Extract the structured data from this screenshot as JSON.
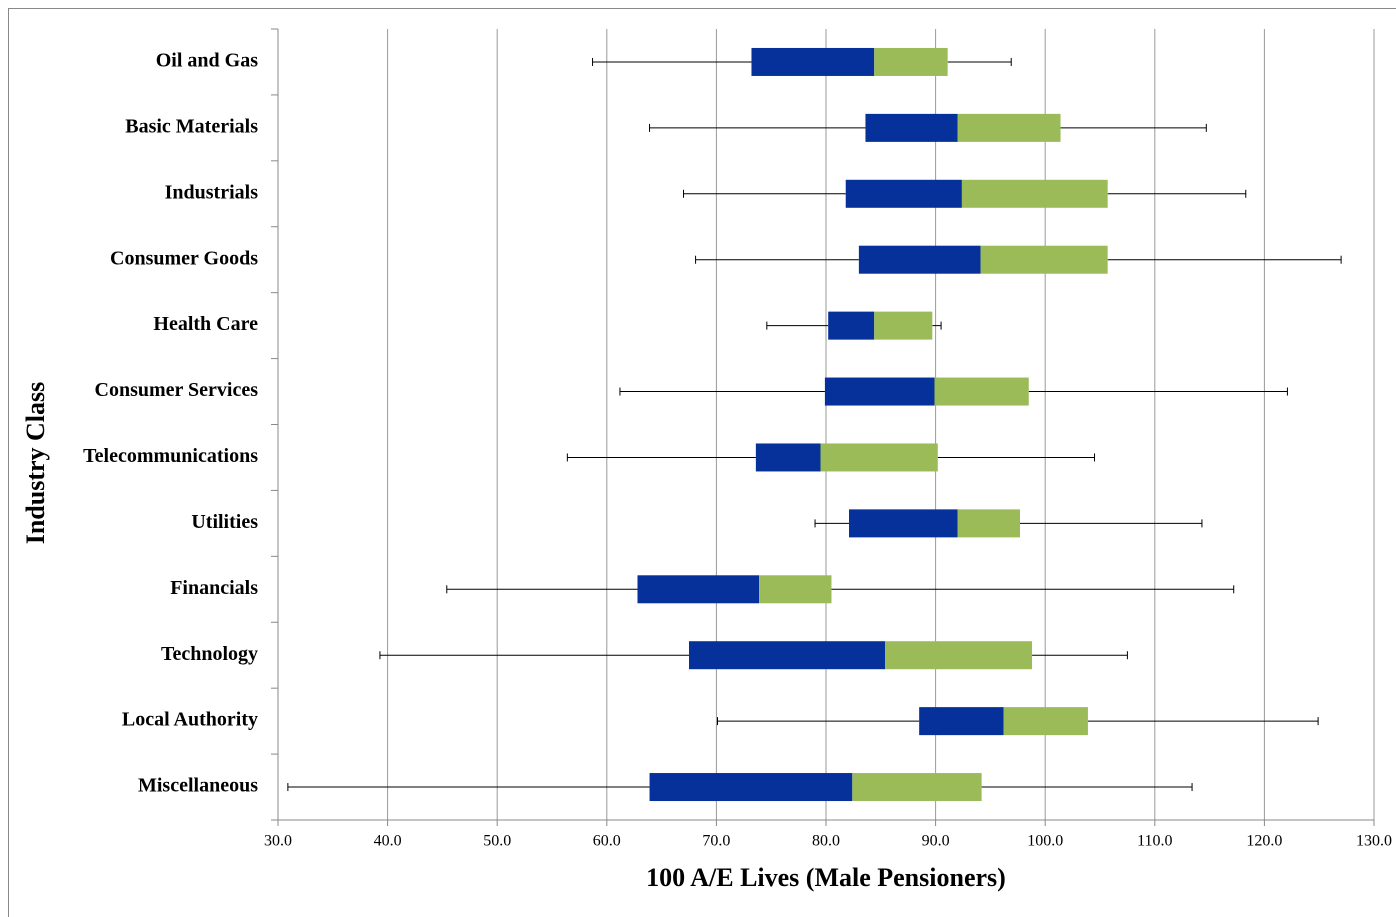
{
  "chart_data": {
    "type": "boxplot",
    "x_label": "100 A/E Lives (Male Pensioners)",
    "y_label": "Industry Class",
    "categories": [
      "Oil and Gas",
      "Basic Materials",
      "Industrials",
      "Consumer Goods",
      "Health Care",
      "Consumer Services",
      "Telecommunications",
      "Utilities",
      "Financials",
      "Technology",
      "Local Authority",
      "Miscellaneous"
    ],
    "min": [
      58.7,
      63.9,
      67.0,
      68.1,
      74.6,
      61.2,
      56.4,
      79.0,
      45.4,
      39.3,
      70.1,
      30.9
    ],
    "q1": [
      73.2,
      83.6,
      81.8,
      83.0,
      80.2,
      79.9,
      73.6,
      82.1,
      62.8,
      67.5,
      88.5,
      63.9
    ],
    "median": [
      84.4,
      92.0,
      92.4,
      94.1,
      84.4,
      89.9,
      79.5,
      92.0,
      73.9,
      85.4,
      96.2,
      82.4
    ],
    "q3": [
      91.1,
      101.4,
      105.7,
      105.7,
      89.7,
      98.5,
      90.2,
      97.7,
      80.5,
      98.8,
      103.9,
      94.2
    ],
    "max": [
      96.9,
      114.7,
      118.3,
      127.0,
      90.5,
      122.1,
      104.5,
      114.3,
      117.2,
      107.5,
      124.9,
      113.4
    ],
    "box_colors": [
      "#06309a",
      "#9bbb59"
    ],
    "xlim": [
      30,
      130
    ],
    "xticks": [
      {
        "value": 30,
        "label": "30.0"
      },
      {
        "value": 40,
        "label": "40.0"
      },
      {
        "value": 50,
        "label": "50.0"
      },
      {
        "value": 60,
        "label": "60.0"
      },
      {
        "value": 70,
        "label": "70.0"
      },
      {
        "value": 80,
        "label": "80.0"
      },
      {
        "value": 90,
        "label": "90.0"
      },
      {
        "value": 100,
        "label": "100.0"
      },
      {
        "value": 110,
        "label": "110.0"
      },
      {
        "value": 120,
        "label": "120.0"
      },
      {
        "value": 130,
        "label": "130.0"
      }
    ],
    "grid": true
  }
}
